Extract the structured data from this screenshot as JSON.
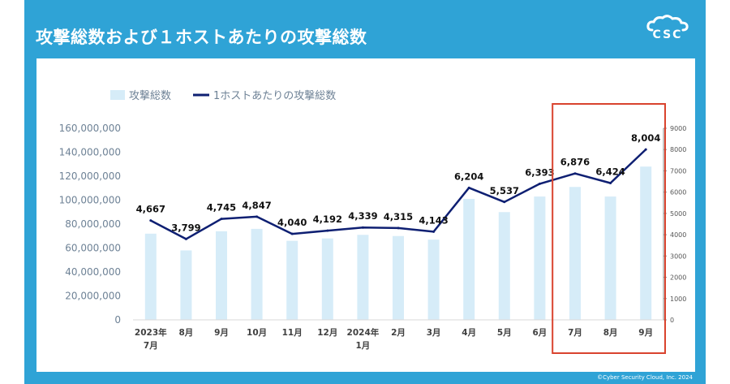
{
  "slide": {
    "title": "攻撃総数および１ホストあたりの攻撃総数",
    "logo_text": "CSC",
    "copyright": "©Cyber Security Cloud, Inc. 2024"
  },
  "colors": {
    "background": "#2fa3d6",
    "bar": "#d6ecf8",
    "line": "#0e1f72",
    "highlight": "#d9432e",
    "axis_text": "#6e8296"
  },
  "chart_data": {
    "type": "bar",
    "categories": [
      [
        "2023年",
        "7月"
      ],
      [
        "8月"
      ],
      [
        "9月"
      ],
      [
        "10月"
      ],
      [
        "11月"
      ],
      [
        "12月"
      ],
      [
        "2024年",
        "1月"
      ],
      [
        "2月"
      ],
      [
        "3月"
      ],
      [
        "4月"
      ],
      [
        "5月"
      ],
      [
        "6月"
      ],
      [
        "7月"
      ],
      [
        "8月"
      ],
      [
        "9月"
      ]
    ],
    "series": [
      {
        "name": "攻撃総数",
        "kind": "bar",
        "axis": "left",
        "values": [
          72000000,
          58000000,
          74000000,
          76000000,
          66000000,
          68000000,
          71000000,
          70000000,
          67000000,
          101000000,
          90000000,
          103000000,
          111000000,
          103000000,
          128000000
        ]
      },
      {
        "name": "1ホストあたりの攻撃総数",
        "kind": "line",
        "axis": "right",
        "values": [
          4667,
          3799,
          4745,
          4847,
          4040,
          4192,
          4339,
          4315,
          4143,
          6204,
          5537,
          6393,
          6876,
          6424,
          8004
        ],
        "labels": [
          "4,667",
          "3,799",
          "4,745",
          "4,847",
          "4,040",
          "4,192",
          "4,339",
          "4,315",
          "4,143",
          "6,204",
          "5,537",
          "6,393",
          "6,876",
          "6,424",
          "8,004"
        ]
      }
    ],
    "ylim_left": [
      0,
      160000000
    ],
    "yticks_left": [
      "0",
      "20,000,000",
      "40,000,000",
      "60,000,000",
      "80,000,000",
      "100,000,000",
      "120,000,000",
      "140,000,000",
      "160,000,000"
    ],
    "ylim_right": [
      0,
      9000
    ],
    "yticks_right": [
      "0",
      "1000",
      "2000",
      "3000",
      "4000",
      "5000",
      "6000",
      "7000",
      "8000",
      "9000"
    ],
    "grid": false,
    "legend_position": "top-left",
    "highlight_categories": [
      12,
      13,
      14
    ]
  }
}
